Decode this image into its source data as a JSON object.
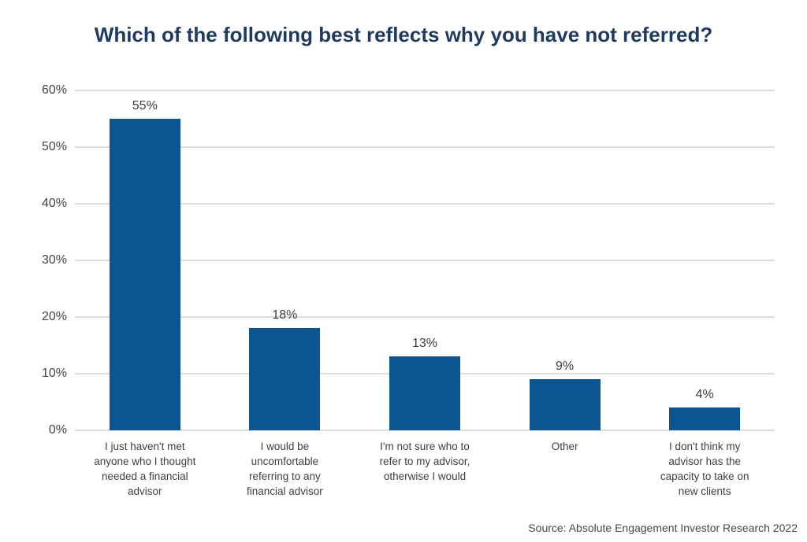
{
  "title": "Which of the following best reflects why you have not referred?",
  "source": "Source: Absolute Engagement Investor Research 2022",
  "colors": {
    "bar": "#0b5593",
    "title": "#1e3a5f",
    "gridline": "#dddddd",
    "tick_text": "#454545",
    "label_text": "#404040"
  },
  "chart_data": {
    "type": "bar",
    "title": "Which of the following best reflects why you have not referred?",
    "categories": [
      "I just haven't met anyone who I thought needed a financial advisor",
      "I would be uncomfortable referring to any financial advisor",
      "I'm not sure who to refer to my advisor, otherwise I would",
      "Other",
      "I don't think my advisor has the capacity to take on new clients"
    ],
    "category_lines": [
      [
        "I just haven't met",
        "anyone who I thought",
        "needed a financial",
        "advisor"
      ],
      [
        "I would be",
        "uncomfortable",
        "referring to any",
        "financial advisor"
      ],
      [
        "I'm not sure who to",
        "refer to my advisor,",
        "otherwise I would"
      ],
      [
        "Other"
      ],
      [
        "I don't think my",
        "advisor has the",
        "capacity to take on",
        "new clients"
      ]
    ],
    "values": [
      55,
      18,
      13,
      9,
      4
    ],
    "data_labels": [
      "55%",
      "18%",
      "13%",
      "9%",
      "4%"
    ],
    "xlabel": "",
    "ylabel": "",
    "ylim": [
      0,
      60
    ],
    "ytick_step": 10,
    "yticks": [
      "0%",
      "10%",
      "20%",
      "30%",
      "40%",
      "50%",
      "60%"
    ],
    "grid": true,
    "legend": false,
    "annotation": "Source: Absolute Engagement Investor Research 2022"
  }
}
